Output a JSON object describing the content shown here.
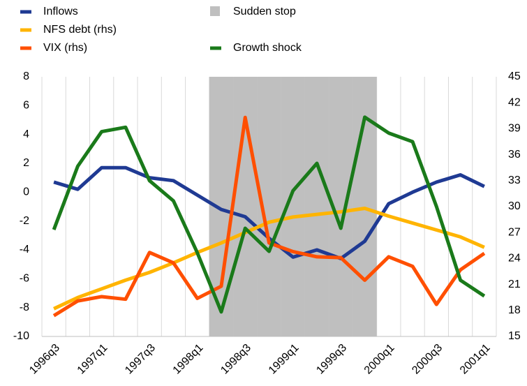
{
  "chart_data": {
    "type": "line",
    "categories": [
      "1996q3",
      null,
      "1997q1",
      null,
      "1997q3",
      null,
      "1998q1",
      null,
      "1998q3",
      null,
      "1999q1",
      null,
      "1999q3",
      null,
      "2000q1",
      null,
      "2000q3",
      null,
      "2001q1"
    ],
    "ylim": [
      -10,
      8
    ],
    "yticks": [
      -10,
      -8,
      -6,
      -4,
      -2,
      0,
      2,
      4,
      6,
      8
    ],
    "y2lim": [
      15,
      45
    ],
    "y2ticks": [
      15,
      18,
      21,
      24,
      27,
      30,
      33,
      36,
      39,
      42,
      45
    ],
    "series": [
      {
        "name": "Inflows",
        "color": "#1f3a93",
        "values": [
          0.7,
          0.2,
          1.7,
          1.7,
          1.0,
          0.8,
          -0.2,
          -1.2,
          -1.7,
          -3.2,
          -4.5,
          -4.0,
          -4.6,
          -3.4,
          -0.8,
          0.0,
          0.7,
          1.2,
          0.4
        ]
      },
      {
        "name": "NFS debt (rhs)",
        "color": "#ffb400",
        "axis": "y2",
        "values": [
          18.2,
          19.5,
          20.5,
          21.5,
          22.4,
          23.5,
          24.7,
          25.8,
          27.0,
          28.2,
          28.8,
          29.1,
          29.4,
          29.8,
          28.9,
          28.1,
          27.3,
          26.5,
          25.3
        ]
      },
      {
        "name": "VIX (rhs)",
        "color": "#ff4f00",
        "axis": "y2",
        "values": [
          17.4,
          19.1,
          19.6,
          19.3,
          24.7,
          23.5,
          19.4,
          20.8,
          40.3,
          25.8,
          24.8,
          24.2,
          24.1,
          21.5,
          24.2,
          23.1,
          18.7,
          22.7,
          24.6
        ]
      },
      {
        "name": "Sudden stop",
        "color": "#bfbfbf",
        "type": "area",
        "values": [
          null,
          null,
          null,
          null,
          null,
          null,
          null,
          8,
          8,
          8,
          8,
          8,
          8,
          8,
          null,
          null,
          null,
          null,
          null
        ]
      },
      {
        "name": "Growth shock",
        "color": "#1a7a1a",
        "values": [
          -2.6,
          1.8,
          4.2,
          4.5,
          0.8,
          -0.6,
          -4.2,
          -8.3,
          -2.5,
          -4.1,
          0.1,
          2.0,
          -2.5,
          5.2,
          4.1,
          3.5,
          -1.0,
          -6.1,
          -7.2
        ]
      }
    ]
  }
}
